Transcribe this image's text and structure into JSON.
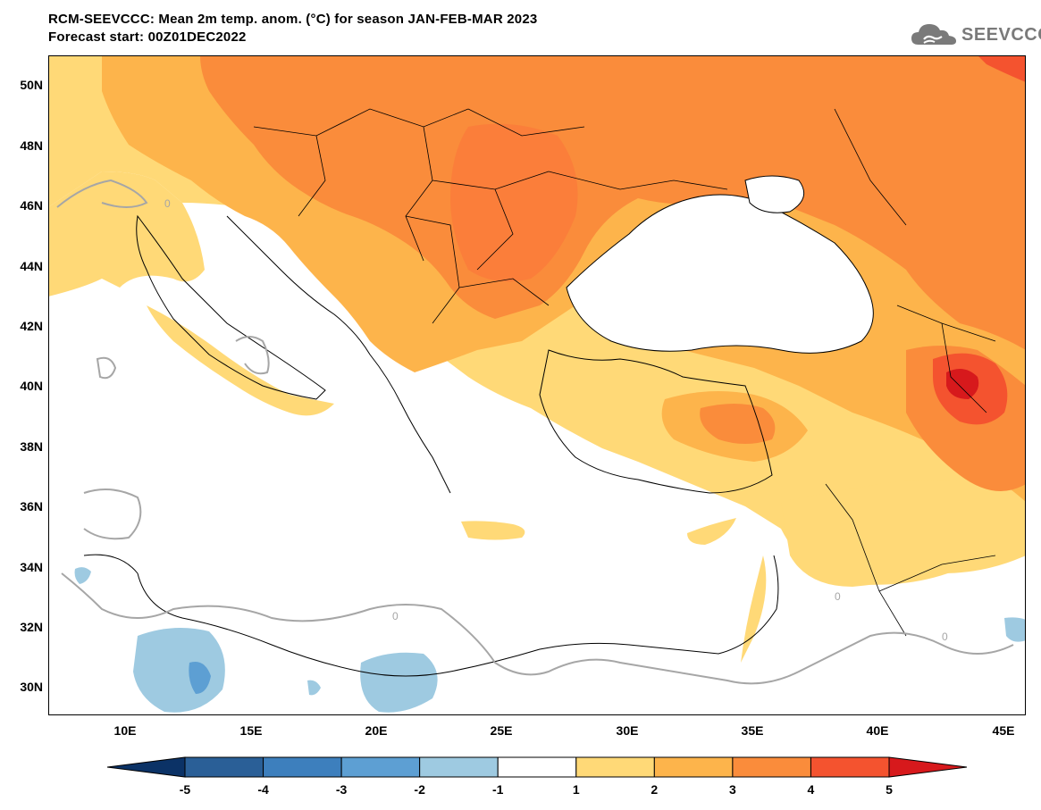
{
  "header": {
    "title_line1": "RCM-SEEVCCC: Mean 2m temp. anom. (°C) for season JAN-FEB-MAR 2023",
    "title_line2": "Forecast start: 00Z01DEC2022"
  },
  "logo": {
    "text": "SEEVCCC",
    "icon": "cloud-logo-icon"
  },
  "axes": {
    "lat_labels": [
      "50N",
      "48N",
      "46N",
      "44N",
      "42N",
      "40N",
      "38N",
      "36N",
      "34N",
      "32N",
      "30N"
    ],
    "lon_labels": [
      "10E",
      "15E",
      "20E",
      "25E",
      "30E",
      "35E",
      "40E",
      "45E"
    ]
  },
  "colorbar": {
    "labels": [
      "-5",
      "-4",
      "-3",
      "-2",
      "-1",
      "1",
      "2",
      "3",
      "4",
      "5"
    ],
    "colors": [
      "#2a5f97",
      "#3d7fbd",
      "#5d9fd3",
      "#9ecae1",
      "#ffffff",
      "#ffd977",
      "#fdb44b",
      "#fa8c3b",
      "#f4532f"
    ],
    "low_end_color": "#0b3266",
    "high_end_color": "#d7191c"
  },
  "map_colors": {
    "sea": "#ffffff",
    "neutral": "#ffffff",
    "plus1_2": "#ffd977",
    "plus2_3": "#fdb44b",
    "plus3_4": "#fa8c3b",
    "plus4_5": "#f4532f",
    "plus5": "#d7191c",
    "minus1_2": "#9ecae1",
    "minus2_3": "#5d9fd3",
    "zero_contour": "#a6a6a6"
  },
  "contour_labels": [
    "0",
    "0",
    "0",
    "0"
  ]
}
